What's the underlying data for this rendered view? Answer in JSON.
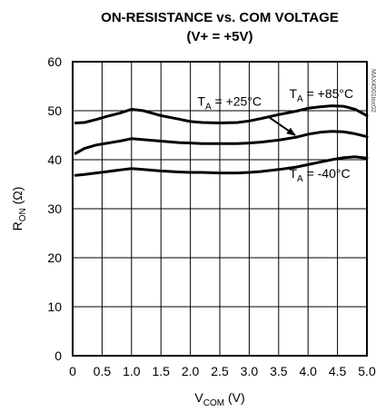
{
  "chart_data": {
    "type": "line",
    "title_lines": [
      "ON-RESISTANCE vs. COM VOLTAGE",
      "(V+ = +5V)"
    ],
    "xlabel": {
      "main": "V",
      "sub": "COM",
      "unit": " (V)"
    },
    "ylabel": {
      "main": "R",
      "sub": "ON",
      "unit": " (Ω)"
    },
    "xlim": [
      0,
      5.0
    ],
    "ylim": [
      0,
      60
    ],
    "x_ticks": [
      {
        "value": 0,
        "label": "0"
      },
      {
        "value": 0.5,
        "label": "0.5"
      },
      {
        "value": 1.0,
        "label": "1.0"
      },
      {
        "value": 1.5,
        "label": "1.5"
      },
      {
        "value": 2.0,
        "label": "2.0"
      },
      {
        "value": 2.5,
        "label": "2.5"
      },
      {
        "value": 3.0,
        "label": "3.0"
      },
      {
        "value": 3.5,
        "label": "3.5"
      },
      {
        "value": 4.0,
        "label": "4.0"
      },
      {
        "value": 4.5,
        "label": "4.5"
      },
      {
        "value": 5.0,
        "label": "5.0"
      }
    ],
    "y_ticks": [
      {
        "value": 0,
        "label": "0"
      },
      {
        "value": 10,
        "label": "10"
      },
      {
        "value": 20,
        "label": "20"
      },
      {
        "value": 30,
        "label": "30"
      },
      {
        "value": 40,
        "label": "40"
      },
      {
        "value": 50,
        "label": "50"
      },
      {
        "value": 60,
        "label": "60"
      }
    ],
    "grid": true,
    "watermark": "MAX4501toc02",
    "series": [
      {
        "name": "T_A = +85°C",
        "color": "#000000",
        "x": [
          0.05,
          0.2,
          0.4,
          0.6,
          0.8,
          1.0,
          1.2,
          1.5,
          1.8,
          2.0,
          2.2,
          2.5,
          2.8,
          3.0,
          3.2,
          3.5,
          3.8,
          4.0,
          4.2,
          4.4,
          4.6,
          4.8,
          5.0
        ],
        "values": [
          47.5,
          47.6,
          48.2,
          48.9,
          49.5,
          50.3,
          50.0,
          49.0,
          48.3,
          47.8,
          47.6,
          47.5,
          47.6,
          47.9,
          48.4,
          49.2,
          49.9,
          50.5,
          50.8,
          51.0,
          50.9,
          50.3,
          49.0
        ]
      },
      {
        "name": "T_A = +25°C",
        "color": "#000000",
        "x": [
          0.05,
          0.2,
          0.4,
          0.6,
          0.8,
          1.0,
          1.2,
          1.5,
          1.8,
          2.0,
          2.2,
          2.5,
          2.8,
          3.0,
          3.2,
          3.5,
          3.8,
          4.0,
          4.2,
          4.4,
          4.6,
          4.8,
          5.0
        ],
        "values": [
          41.3,
          42.3,
          43.0,
          43.4,
          43.8,
          44.3,
          44.1,
          43.8,
          43.5,
          43.4,
          43.3,
          43.3,
          43.3,
          43.4,
          43.6,
          44.0,
          44.6,
          45.2,
          45.6,
          45.8,
          45.7,
          45.3,
          44.7
        ]
      },
      {
        "name": "T_A = -40°C",
        "color": "#000000",
        "x": [
          0.05,
          0.2,
          0.4,
          0.6,
          0.8,
          1.0,
          1.2,
          1.5,
          1.8,
          2.0,
          2.2,
          2.5,
          2.8,
          3.0,
          3.2,
          3.5,
          3.8,
          4.0,
          4.2,
          4.4,
          4.6,
          4.8,
          5.0
        ],
        "values": [
          36.8,
          37.0,
          37.3,
          37.6,
          37.9,
          38.2,
          38.0,
          37.7,
          37.5,
          37.4,
          37.4,
          37.3,
          37.3,
          37.4,
          37.6,
          38.0,
          38.5,
          39.0,
          39.5,
          40.0,
          40.4,
          40.6,
          40.3
        ]
      }
    ],
    "annotations": [
      {
        "text_main": "T",
        "text_sub": "A",
        "text_rest": " = +85°C",
        "x": 3.68,
        "y": 52.6
      },
      {
        "text_main": "T",
        "text_sub": "A",
        "text_rest": " = +25°C",
        "x": 2.12,
        "y": 51.0
      },
      {
        "text_main": "T",
        "text_sub": "A",
        "text_rest": " = -40°C",
        "x": 3.68,
        "y": 36.3
      }
    ],
    "arrow": {
      "from": [
        3.32,
        48.8
      ],
      "to": [
        3.78,
        45.0
      ]
    }
  }
}
